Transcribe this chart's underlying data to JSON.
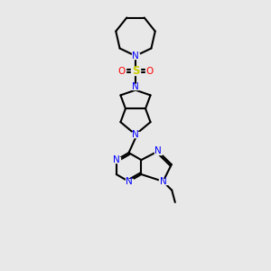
{
  "background_color": "#e8e8e8",
  "bond_color": "#000000",
  "N_color": "#0000ff",
  "S_color": "#cccc00",
  "O_color": "#ff0000",
  "line_width": 1.5,
  "figsize": [
    3.0,
    3.0
  ],
  "dpi": 100,
  "xlim": [
    0,
    10
  ],
  "ylim": [
    0,
    14
  ]
}
